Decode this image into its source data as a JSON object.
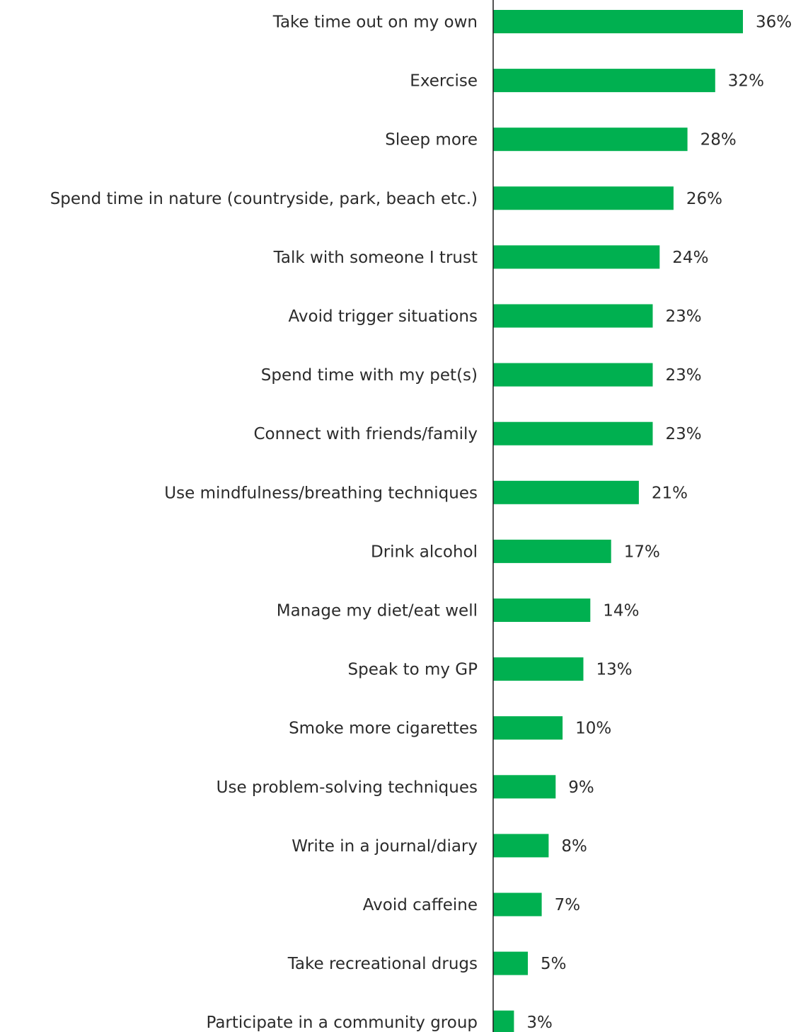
{
  "chart_data": {
    "type": "bar",
    "orientation": "horizontal",
    "categories": [
      "Take time out on my own",
      "Exercise",
      "Sleep more",
      "Spend time in nature (countryside, park, beach etc.)",
      "Talk with someone I trust",
      "Avoid trigger situations",
      "Spend time with my pet(s)",
      "Connect with friends/family",
      "Use mindfulness/breathing techniques",
      "Drink alcohol",
      "Manage my diet/eat well",
      "Speak to my GP",
      "Smoke more cigarettes",
      "Use problem-solving techniques",
      "Write in a journal/diary",
      "Avoid caffeine",
      "Take recreational drugs",
      "Participate in a community group"
    ],
    "values": [
      36,
      32,
      28,
      26,
      24,
      23,
      23,
      23,
      21,
      17,
      14,
      13,
      10,
      9,
      8,
      7,
      5,
      3
    ],
    "value_labels": [
      "36%",
      "32%",
      "28%",
      "26%",
      "24%",
      "23%",
      "23%",
      "23%",
      "21%",
      "17%",
      "14%",
      "13%",
      "10%",
      "9%",
      "8%",
      "7%",
      "5%",
      "3%"
    ],
    "unit": "%",
    "title": "",
    "xlabel": "",
    "ylabel": "",
    "xlim": [
      0,
      36
    ],
    "grid": false,
    "legend": "none",
    "bar_color": "#00b050",
    "axis_color": "#1a1a1a"
  }
}
